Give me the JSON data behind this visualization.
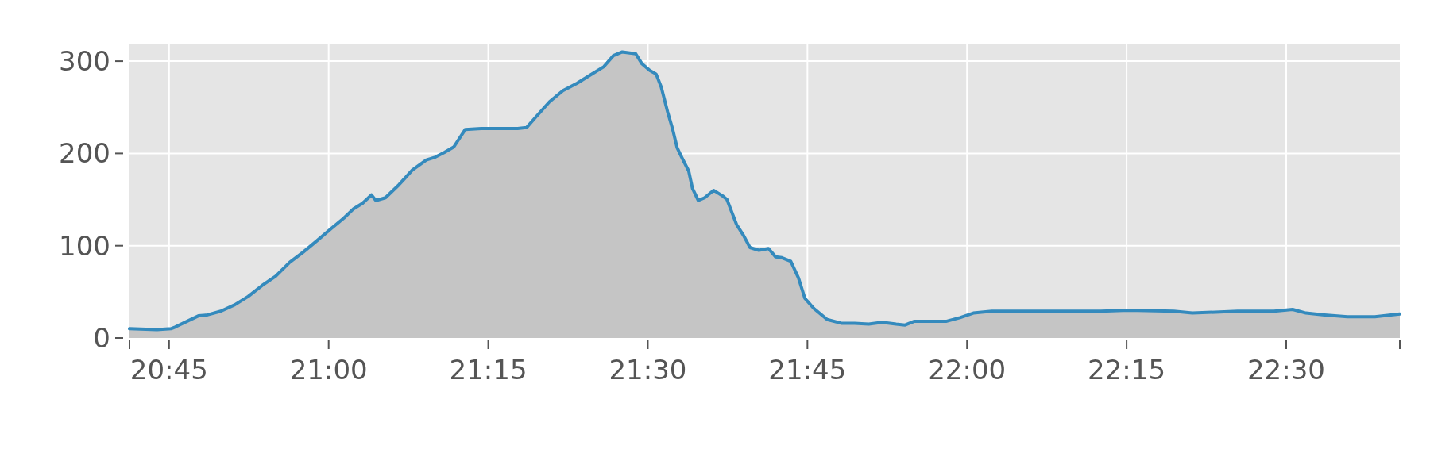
{
  "chart_data": {
    "type": "area",
    "x": [
      20.688,
      20.731,
      20.753,
      20.76,
      20.781,
      20.796,
      20.81,
      20.831,
      20.853,
      20.874,
      20.896,
      20.917,
      20.939,
      20.96,
      20.981,
      21.003,
      21.024,
      21.039,
      21.053,
      21.067,
      21.074,
      21.089,
      21.11,
      21.131,
      21.153,
      21.167,
      21.181,
      21.196,
      21.214,
      21.239,
      21.26,
      21.296,
      21.31,
      21.324,
      21.346,
      21.367,
      21.389,
      21.41,
      21.431,
      21.446,
      21.46,
      21.481,
      21.491,
      21.503,
      21.513,
      21.521,
      21.531,
      21.539,
      21.546,
      21.553,
      21.564,
      21.57,
      21.579,
      21.589,
      21.603,
      21.617,
      21.624,
      21.639,
      21.65,
      21.66,
      21.674,
      21.689,
      21.7,
      21.71,
      21.724,
      21.736,
      21.746,
      21.76,
      21.781,
      21.803,
      21.824,
      21.846,
      21.867,
      21.889,
      21.903,
      21.917,
      21.939,
      21.967,
      21.989,
      22.01,
      22.039,
      22.067,
      22.096,
      22.124,
      22.21,
      22.253,
      22.324,
      22.353,
      22.424,
      22.481,
      22.51,
      22.531,
      22.56,
      22.596,
      22.639,
      22.678
    ],
    "series": [
      {
        "color": "#348abd",
        "values": [
          10,
          9,
          10,
          12,
          19,
          24,
          25,
          29,
          36,
          45,
          57,
          67,
          82,
          93,
          105,
          118,
          130,
          140,
          146,
          155,
          149,
          152,
          166,
          182,
          193,
          196,
          201,
          207,
          226,
          227,
          227,
          227,
          228,
          239,
          256,
          268,
          276,
          285,
          294,
          306,
          310,
          308,
          297,
          290,
          286,
          272,
          245,
          226,
          206,
          196,
          181,
          162,
          149,
          152,
          160,
          154,
          150,
          123,
          111,
          98,
          95,
          97,
          88,
          87,
          83,
          65,
          43,
          32,
          20,
          16,
          16,
          15,
          17,
          15,
          14,
          18,
          18,
          18,
          22,
          27,
          29,
          29,
          29,
          29,
          29,
          30,
          29,
          27,
          29,
          29,
          31,
          27,
          25,
          23,
          23,
          26
        ]
      }
    ],
    "xlim": [
      20.688,
      22.678
    ],
    "xticks": [
      {
        "value": 20.688,
        "label": null
      },
      {
        "value": 20.75,
        "label": "20:45"
      },
      {
        "value": 21,
        "label": "21:00"
      },
      {
        "value": 21.25,
        "label": "21:15"
      },
      {
        "value": 21.5,
        "label": "21:30"
      },
      {
        "value": 21.75,
        "label": "21:45"
      },
      {
        "value": 22,
        "label": "22:00"
      },
      {
        "value": 22.25,
        "label": "22:15"
      },
      {
        "value": 22.5,
        "label": "22:30"
      },
      {
        "value": 22.678,
        "label": null
      }
    ],
    "ylim": [
      0,
      319
    ],
    "yticks": [
      0,
      100,
      200,
      300
    ],
    "grid": true
  }
}
